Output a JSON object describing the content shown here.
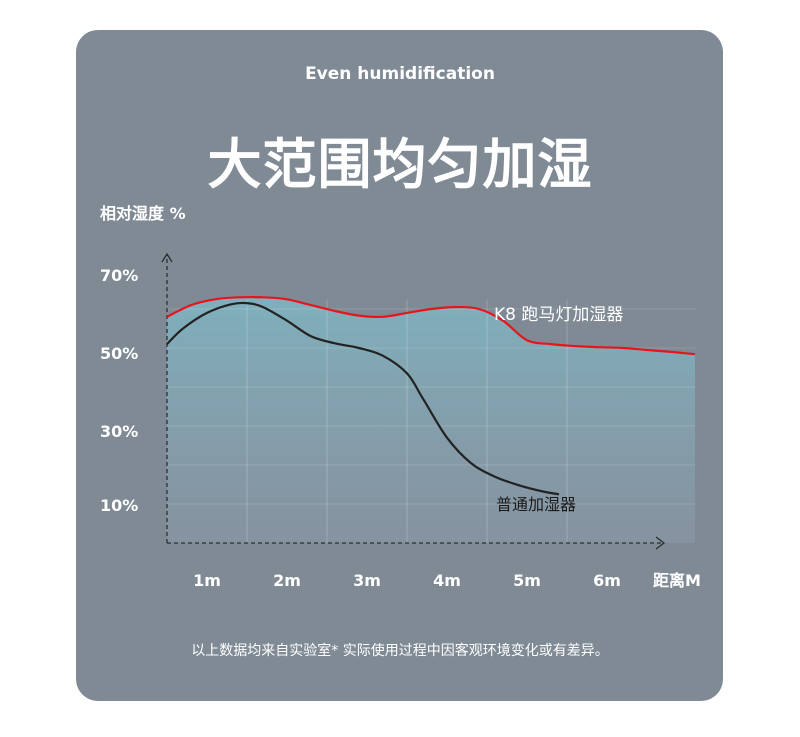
{
  "header": {
    "subtitle": "Even humidification",
    "title": "大范围均匀加湿"
  },
  "footnote": "以上数据均来自实验室*  实际使用过程中因客观环境变化或有差异。",
  "colors": {
    "card_bg": "#7f8a95",
    "k8_line": "#e8141c",
    "normal_line": "#222222",
    "fill_top": "#7fb2bf",
    "fill_bottom": "#8a98a6"
  },
  "chart_data": {
    "type": "line",
    "ylabel": "相对湿度 %",
    "xlabel": "距离M",
    "x_ticks": [
      "1m",
      "2m",
      "3m",
      "4m",
      "5m",
      "6m"
    ],
    "y_ticks": [
      "70%",
      "50%",
      "30%",
      "10%"
    ],
    "xlim": [
      0,
      6.6
    ],
    "ylim": [
      0,
      75
    ],
    "grid": true,
    "series": [
      {
        "name": "K8 跑马灯加湿器",
        "x": [
          0,
          0.3,
          0.6,
          0.9,
          1.2,
          1.5,
          1.8,
          2.1,
          2.4,
          2.7,
          3.0,
          3.3,
          3.6,
          3.9,
          4.2,
          4.5,
          4.8,
          5.1,
          5.4,
          5.7,
          6.0,
          6.3,
          6.6
        ],
        "y": [
          58,
          61,
          62.5,
          63,
          63,
          62.5,
          61,
          59.5,
          58.3,
          58,
          59,
          60,
          60.5,
          60,
          57,
          52,
          51,
          50.5,
          50.2,
          50,
          49.5,
          49,
          48.4
        ]
      },
      {
        "name": "普通加湿器",
        "x": [
          0,
          0.2,
          0.5,
          0.8,
          1.0,
          1.2,
          1.5,
          1.8,
          2.1,
          2.4,
          2.7,
          3.0,
          3.2,
          3.5,
          3.8,
          4.1,
          4.4,
          4.7,
          4.9
        ],
        "y": [
          51,
          55,
          59,
          61.2,
          61.5,
          60.5,
          57,
          53,
          51.2,
          50,
          48,
          43.5,
          37,
          27,
          20.5,
          17,
          14.8,
          13.2,
          12.5
        ]
      }
    ]
  }
}
